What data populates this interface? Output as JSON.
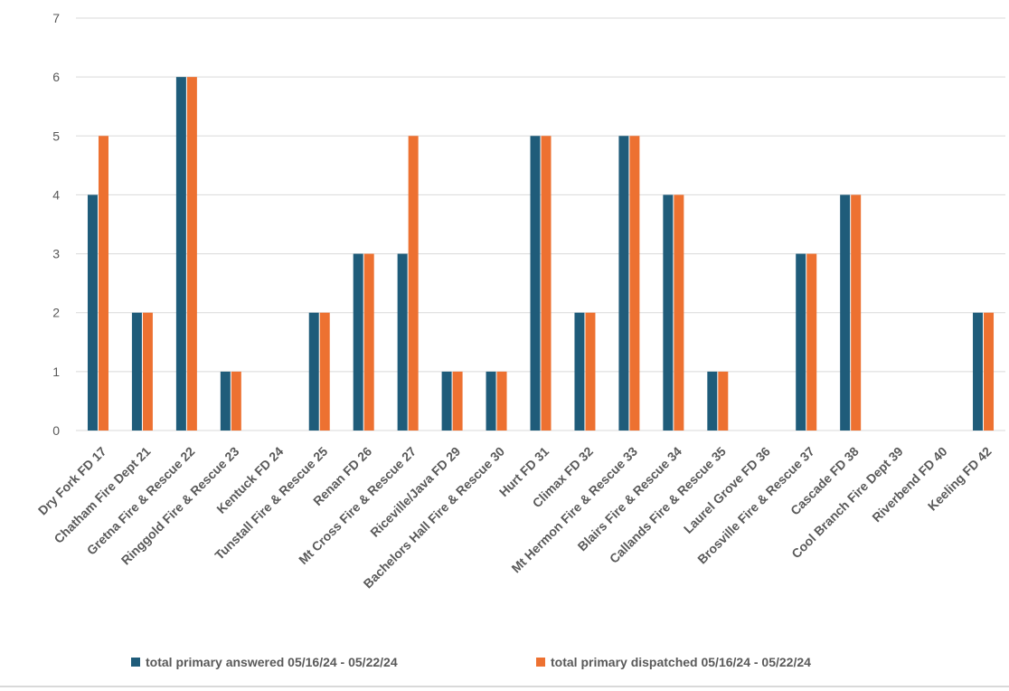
{
  "chart_data": {
    "type": "bar",
    "title": "",
    "xlabel": "",
    "ylabel": "",
    "ylim": [
      0,
      7
    ],
    "yticks": [
      0,
      1,
      2,
      3,
      4,
      5,
      6,
      7
    ],
    "grid": true,
    "legend_position": "bottom",
    "categories": [
      "Dry Fork FD  17",
      "Chatham Fire Dept 21",
      "Gretna Fire & Rescue  22",
      "Ringgold Fire & Rescue 23",
      "Kentuck FD 24",
      "Tunstall Fire & Rescue 25",
      "Renan FD 26",
      "Mt Cross Fire & Rescue 27",
      "Riceville/Java FD 29",
      "Bachelors Hall Fire & Rescue 30",
      "Hurt FD 31",
      "Climax FD  32",
      "Mt Hermon Fire & Rescue 33",
      "Blairs Fire & Rescue 34",
      "Callands Fire & Rescue 35",
      "Laurel Grove FD 36",
      "Brosville Fire & Rescue 37",
      "Cascade FD 38",
      "Cool Branch Fire Dept 39",
      "Riverbend FD 40",
      "Keeling FD 42"
    ],
    "series": [
      {
        "name": "total primary answered 05/16/24 - 05/22/24",
        "color": "#1f5c7a",
        "values": [
          4,
          2,
          6,
          1,
          0,
          2,
          3,
          3,
          1,
          1,
          5,
          2,
          5,
          4,
          1,
          0,
          3,
          4,
          0,
          0,
          2
        ]
      },
      {
        "name": "total primary dispatched 05/16/24 - 05/22/24",
        "color": "#ed7131",
        "values": [
          5,
          2,
          6,
          1,
          0,
          2,
          3,
          5,
          1,
          1,
          5,
          2,
          5,
          4,
          1,
          0,
          3,
          4,
          0,
          0,
          2
        ]
      }
    ]
  }
}
